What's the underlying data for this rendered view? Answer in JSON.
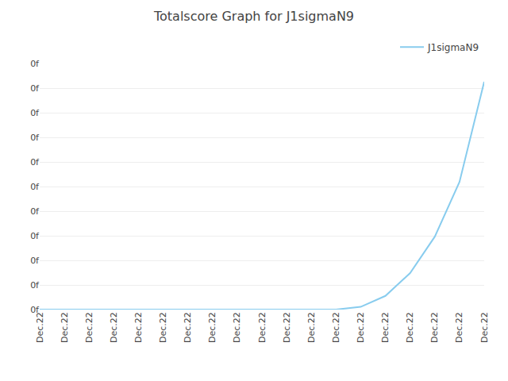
{
  "chart_data": {
    "type": "line",
    "title": "Totalscore Graph for J1sigmaN9",
    "x": [
      0,
      1,
      2,
      3,
      4,
      5,
      6,
      7,
      8,
      9,
      10,
      11,
      12,
      13,
      14,
      15,
      16,
      17,
      18
    ],
    "series": [
      {
        "name": "J1sigmaN9",
        "color": "#88ccee",
        "values": [
          0,
          0,
          0,
          0,
          0,
          0,
          0,
          0,
          0,
          0,
          0,
          0,
          0,
          0.3,
          1.5,
          4,
          8,
          14,
          25
        ]
      }
    ],
    "xlim": [
      0,
      18
    ],
    "xticks": [
      {
        "value": 0,
        "label": "Dec.22"
      },
      {
        "value": 1,
        "label": "Dec.22"
      },
      {
        "value": 2,
        "label": "Dec.22"
      },
      {
        "value": 3,
        "label": "Dec.22"
      },
      {
        "value": 4,
        "label": "Dec.22"
      },
      {
        "value": 5,
        "label": "Dec.22"
      },
      {
        "value": 6,
        "label": "Dec.22"
      },
      {
        "value": 7,
        "label": "Dec.22"
      },
      {
        "value": 8,
        "label": "Dec.22"
      },
      {
        "value": 9,
        "label": "Dec.22"
      },
      {
        "value": 10,
        "label": "Dec.22"
      },
      {
        "value": 11,
        "label": "Dec.22"
      },
      {
        "value": 12,
        "label": "Dec.22"
      },
      {
        "value": 13,
        "label": "Dec.22"
      },
      {
        "value": 14,
        "label": "Dec.22"
      },
      {
        "value": 15,
        "label": "Dec.22"
      },
      {
        "value": 16,
        "label": "Dec.22"
      },
      {
        "value": 17,
        "label": "Dec.22"
      },
      {
        "value": 18,
        "label": "Dec.22"
      }
    ],
    "ylim": [
      0,
      27
    ],
    "yticks": [
      {
        "value": 0,
        "label": "0f"
      },
      {
        "value": 2.7,
        "label": "0f"
      },
      {
        "value": 5.4,
        "label": "0f"
      },
      {
        "value": 8.1,
        "label": "0f"
      },
      {
        "value": 10.8,
        "label": "0f"
      },
      {
        "value": 13.5,
        "label": "0f"
      },
      {
        "value": 16.2,
        "label": "0f"
      },
      {
        "value": 18.9,
        "label": "0f"
      },
      {
        "value": 21.6,
        "label": "0f"
      },
      {
        "value": 24.3,
        "label": "0f"
      },
      {
        "value": 27,
        "label": "0f"
      }
    ],
    "grid": "y",
    "legend": "upper right"
  }
}
